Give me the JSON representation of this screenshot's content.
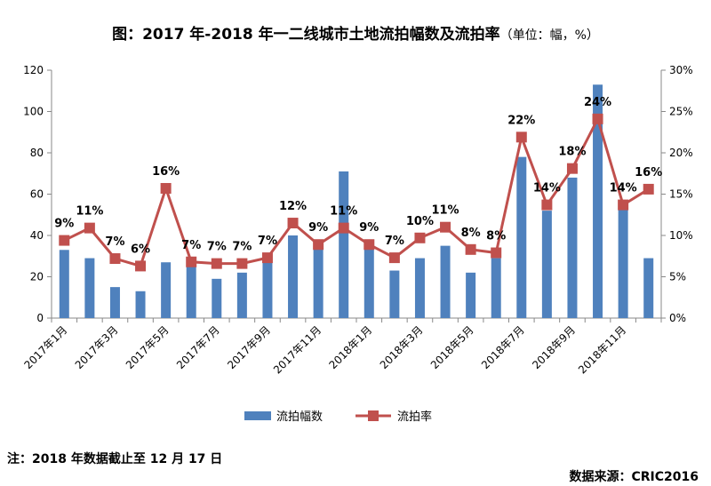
{
  "title": "图：2017 年-2018 年一二线城市土地流拍幅数及流拍率",
  "title_unit": "（单位：幅，%）",
  "note": "注：2018 年数据截止至 12 月 17 日",
  "source": "数据来源：CRIC2016",
  "colors": {
    "bar": "#4f81bd",
    "line": "#c0504d"
  },
  "chart_data": {
    "type": "bar+line",
    "categories": [
      "2017年1月",
      "2017年2月",
      "2017年3月",
      "2017年4月",
      "2017年5月",
      "2017年6月",
      "2017年7月",
      "2017年8月",
      "2017年9月",
      "2017年10月",
      "2017年11月",
      "2017年12月",
      "2018年1月",
      "2018年2月",
      "2018年3月",
      "2018年4月",
      "2018年5月",
      "2018年6月",
      "2018年7月",
      "2018年8月",
      "2018年9月",
      "2018年10月",
      "2018年11月",
      "2018年12月"
    ],
    "x_tick_labels": [
      "2017年1月",
      "2017年3月",
      "2017年5月",
      "2017年7月",
      "2017年9月",
      "2017年11月",
      "2018年1月",
      "2018年3月",
      "2018年5月",
      "2018年7月",
      "2018年9月",
      "2018年11月"
    ],
    "series": [
      {
        "name": "流拍幅数",
        "type": "bar",
        "axis": "left",
        "values": [
          33,
          29,
          15,
          13,
          27,
          27,
          19,
          22,
          27,
          40,
          34,
          71,
          34,
          23,
          29,
          35,
          22,
          29,
          78,
          52,
          68,
          113,
          54,
          29
        ]
      },
      {
        "name": "流拍率",
        "type": "line",
        "axis": "right",
        "values": [
          9.4,
          10.9,
          7.2,
          6.3,
          15.7,
          6.8,
          6.6,
          6.6,
          7.3,
          11.5,
          8.9,
          10.9,
          8.9,
          7.3,
          9.7,
          11.0,
          8.3,
          7.9,
          21.9,
          13.7,
          18.1,
          24.1,
          13.7,
          15.6
        ],
        "labels": [
          "9%",
          "11%",
          "7%",
          "6%",
          "16%",
          "7%",
          "7%",
          "7%",
          "7%",
          "12%",
          "9%",
          "11%",
          "9%",
          "7%",
          "10%",
          "11%",
          "8%",
          "8%",
          "22%",
          "14%",
          "18%",
          "24%",
          "14%",
          "16%"
        ]
      }
    ],
    "ylim_left": [
      0,
      120
    ],
    "yticks_left": [
      "0",
      "20",
      "40",
      "60",
      "80",
      "100",
      "120"
    ],
    "ylim_right": [
      0,
      30
    ],
    "yticks_right": [
      "0%",
      "5%",
      "10%",
      "15%",
      "20%",
      "25%",
      "30%"
    ],
    "legend": [
      "流拍幅数",
      "流拍率"
    ],
    "legend_position": "bottom"
  }
}
